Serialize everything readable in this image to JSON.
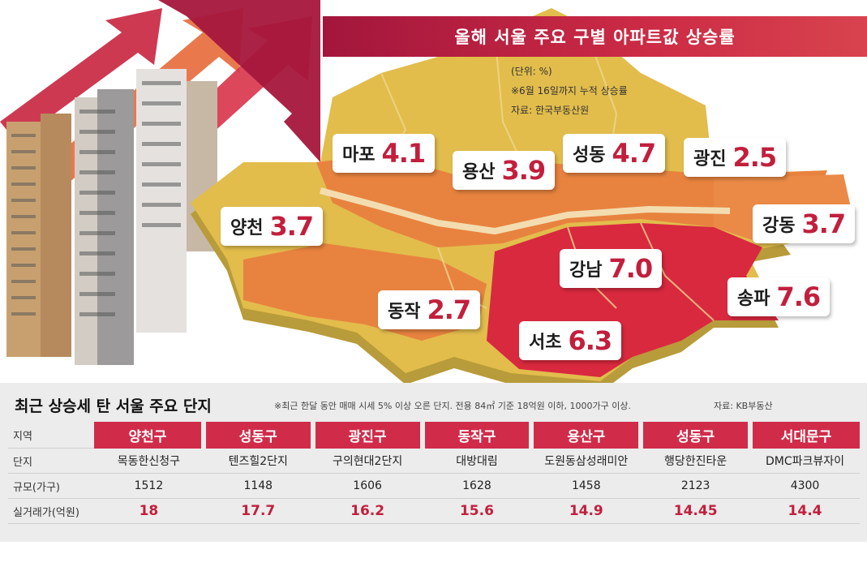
{
  "title": "올해 서울 주요 구별 아파트값 상승률",
  "notes": [
    "(단위: %)",
    "※6월 16일까지 누적 상승률",
    "자료: 한국부동산원"
  ],
  "colors": {
    "accent": "#c21f3d",
    "banner": "#b31f40",
    "high": "#d9293f",
    "mid": "#e8833f",
    "low": "#e2bd4c"
  },
  "districts": [
    {
      "name": "마포",
      "value": "4.1"
    },
    {
      "name": "용산",
      "value": "3.9"
    },
    {
      "name": "성동",
      "value": "4.7"
    },
    {
      "name": "광진",
      "value": "2.5"
    },
    {
      "name": "양천",
      "value": "3.7"
    },
    {
      "name": "강동",
      "value": "3.7"
    },
    {
      "name": "강남",
      "value": "7.0"
    },
    {
      "name": "송파",
      "value": "7.6"
    },
    {
      "name": "동작",
      "value": "2.7"
    },
    {
      "name": "서초",
      "value": "6.3"
    }
  ],
  "table": {
    "title": "최근 상승세 탄 서울 주요 단지",
    "note": "※최근 한달 동안 매매 시세 5% 이상 오른 단지. 전용 84㎡ 기준 18억원 이하, 1000가구 이상.",
    "source": "자료: KB부동산",
    "row_labels": [
      "지역",
      "단지",
      "규모(가구)",
      "실거래가(억원)"
    ],
    "columns": [
      {
        "region": "양천구",
        "complex": "목동한신청구",
        "size": "1512",
        "price": "18"
      },
      {
        "region": "성동구",
        "complex": "텐즈힐2단지",
        "size": "1148",
        "price": "17.7"
      },
      {
        "region": "광진구",
        "complex": "구의현대2단지",
        "size": "1606",
        "price": "16.2"
      },
      {
        "region": "동작구",
        "complex": "대방대림",
        "size": "1628",
        "price": "15.6"
      },
      {
        "region": "용산구",
        "complex": "도원동삼성래미안",
        "size": "1458",
        "price": "14.9"
      },
      {
        "region": "성동구",
        "complex": "행당한진타운",
        "size": "2123",
        "price": "14.45"
      },
      {
        "region": "서대문구",
        "complex": "DMC파크뷰자이",
        "size": "4300",
        "price": "14.4"
      }
    ]
  }
}
